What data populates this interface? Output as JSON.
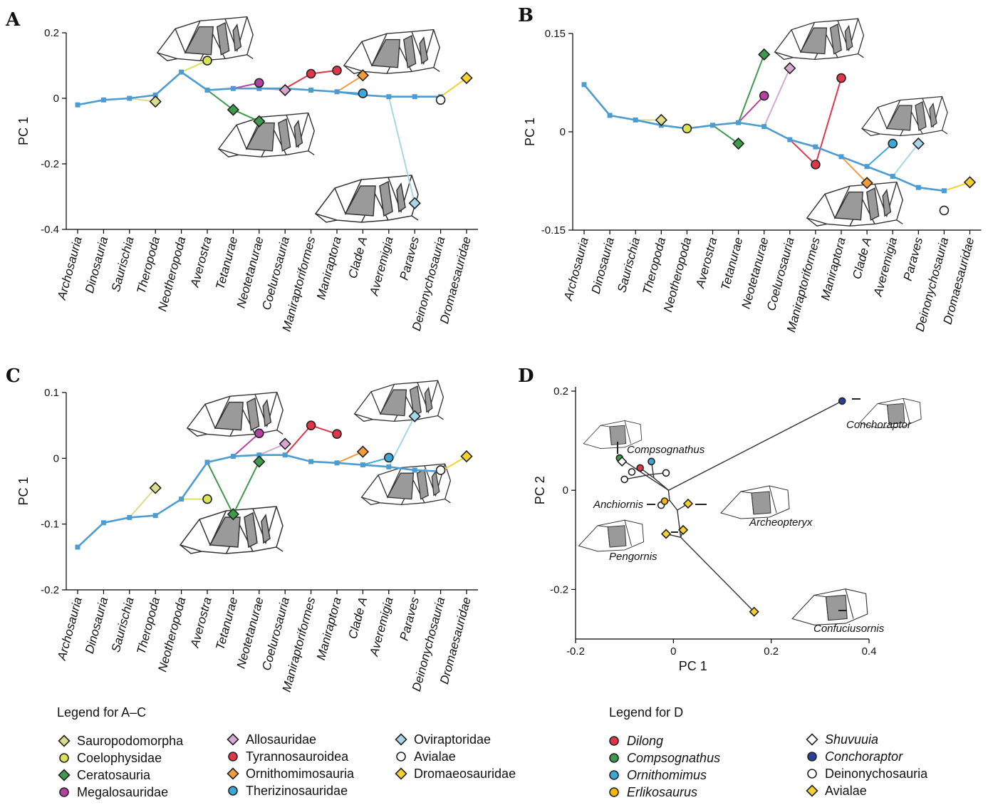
{
  "figure": {
    "panel_letters": [
      "A",
      "B",
      "C",
      "D"
    ]
  },
  "colors": {
    "Main": "#4d9cd1",
    "Sauropodomorpha": "#dcdc8a",
    "Coelophysidae": "#d9e35a",
    "Ceratosauria": "#3f9a4e",
    "Megalosauridae": "#b243a1",
    "Allosauridae": "#d7a7cf",
    "Tyrannosauroidea": "#e0364a",
    "Ornithomimosauria": "#f29b3a",
    "Therizinosauridae": "#3aa8d8",
    "Oviraptoridae": "#a7d6e8",
    "Avialae": "#ffffff",
    "Dromaeosauridae": "#f6d12d",
    "Dilong": "#e0364a",
    "Compsognathus": "#3f9a4e",
    "Ornithomimus": "#3aa8d8",
    "Erlikosaurus": "#f5b800",
    "Shuvuuia": "#ffffff",
    "Conchoraptor": "#2b3f9a",
    "Deinonychosauria": "#ffffff",
    "AvialaeD": "#f6d12d"
  },
  "chart_data": [
    {
      "panel": "A",
      "type": "line",
      "ylabel": "PC 1",
      "ylim": [
        -0.4,
        0.2
      ],
      "yticks": [
        0.2,
        0,
        -0.2,
        -0.4
      ],
      "ytick_labels": [
        "0.2",
        "0",
        "-0.2",
        "-0.4"
      ],
      "categories": [
        "Archosauria",
        "Dinosauria",
        "Saurischia",
        "Theropoda",
        "Neotheropoda",
        "Averostra",
        "Tetanurae",
        "Neotetanurae",
        "Coelurosauria",
        "Maniraptoriformes",
        "Maniraptora",
        "Clade A",
        "Averemigia",
        "Paraves",
        "Deinonychosauria",
        "Dromaesauridae"
      ],
      "main_series": {
        "name": "",
        "x": [
          0,
          1,
          2,
          3,
          4,
          5,
          6,
          7,
          8,
          9,
          10,
          11,
          12,
          13,
          14
        ],
        "values": [
          -0.02,
          -0.005,
          0.0,
          0.01,
          0.08,
          0.025,
          0.03,
          0.03,
          0.03,
          0.025,
          0.02,
          0.01,
          0.005,
          0.005,
          0.005
        ]
      },
      "branches": [
        {
          "group": "Sauropodomorpha",
          "from_x": 2,
          "from_y": 0.0,
          "x": 3,
          "y": -0.01,
          "shape": "diamond"
        },
        {
          "group": "Coelophysidae",
          "from_x": 4,
          "from_y": 0.08,
          "x": 5,
          "y": 0.115,
          "shape": "circle"
        },
        {
          "group": "Ceratosauria",
          "from_x": 5,
          "from_y": 0.025,
          "x": 6,
          "y": -0.035,
          "shape": "diamond"
        },
        {
          "group": "Ceratosauria",
          "from_x": 6,
          "from_y": -0.035,
          "x": 7,
          "y": -0.07,
          "shape": "diamond"
        },
        {
          "group": "Megalosauridae",
          "from_x": 6,
          "from_y": 0.03,
          "x": 7,
          "y": 0.047,
          "shape": "circle"
        },
        {
          "group": "Allosauridae",
          "from_x": 7,
          "from_y": 0.03,
          "x": 8,
          "y": 0.025,
          "shape": "diamond"
        },
        {
          "group": "Tyrannosauroidea",
          "from_x": 8,
          "from_y": 0.03,
          "x": 9,
          "y": 0.075,
          "shape": "circle"
        },
        {
          "group": "Tyrannosauroidea",
          "from_x": 9,
          "from_y": 0.075,
          "x": 10,
          "y": 0.085,
          "shape": "circle"
        },
        {
          "group": "Ornithomimosauria",
          "from_x": 10,
          "from_y": 0.02,
          "x": 11,
          "y": 0.07,
          "shape": "diamond"
        },
        {
          "group": "Therizinosauridae",
          "from_x": 10,
          "from_y": 0.02,
          "x": 11,
          "y": 0.015,
          "shape": "circle"
        },
        {
          "group": "Oviraptoridae",
          "from_x": 12,
          "from_y": 0.005,
          "x": 13,
          "y": -0.32,
          "shape": "diamond"
        },
        {
          "group": "Avialae",
          "from_x": 13,
          "from_y": 0.005,
          "x": 14,
          "y": -0.005,
          "shape": "circle"
        },
        {
          "group": "Dromaeosauridae",
          "from_x": 14,
          "from_y": 0.005,
          "x": 15,
          "y": 0.062,
          "shape": "diamond"
        }
      ]
    },
    {
      "panel": "B",
      "type": "line",
      "ylabel": "PC 1",
      "ylim": [
        -0.15,
        0.15
      ],
      "yticks": [
        0.15,
        0,
        -0.15
      ],
      "ytick_labels": [
        "0.15",
        "0",
        "-0.15"
      ],
      "categories": [
        "Archosauria",
        "Dinosauria",
        "Saurischia",
        "Theropoda",
        "Neotheropoda",
        "Averostra",
        "Tetanurae",
        "Neotetanurae",
        "Coelurosauria",
        "Maniraptoriformes",
        "Maniraptora",
        "Clade A",
        "Averemigia",
        "Paraves",
        "Deinonychosauria",
        "Dromaesauridae"
      ],
      "main_series": {
        "name": "",
        "x": [
          0,
          1,
          2,
          3,
          4,
          5,
          6,
          7,
          8,
          9,
          10,
          11,
          12,
          13,
          14
        ],
        "values": [
          0.072,
          0.025,
          0.018,
          0.01,
          0.005,
          0.01,
          0.014,
          0.008,
          -0.012,
          -0.023,
          -0.038,
          -0.053,
          -0.068,
          -0.085,
          -0.09
        ]
      },
      "branches": [
        {
          "group": "Sauropodomorpha",
          "from_x": 2,
          "from_y": 0.018,
          "x": 3,
          "y": 0.018,
          "shape": "diamond"
        },
        {
          "group": "Coelophysidae",
          "from_x": 3,
          "from_y": 0.01,
          "x": 4,
          "y": 0.005,
          "shape": "circle"
        },
        {
          "group": "Ceratosauria",
          "from_x": 5,
          "from_y": 0.01,
          "x": 6,
          "y": -0.018,
          "shape": "diamond"
        },
        {
          "group": "Ceratosauria",
          "from_x": 6,
          "from_y": 0.014,
          "x": 7,
          "y": 0.118,
          "shape": "diamond"
        },
        {
          "group": "Megalosauridae",
          "from_x": 6,
          "from_y": 0.014,
          "x": 7,
          "y": 0.055,
          "shape": "circle"
        },
        {
          "group": "Allosauridae",
          "from_x": 7,
          "from_y": 0.008,
          "x": 8,
          "y": 0.097,
          "shape": "diamond"
        },
        {
          "group": "Tyrannosauroidea",
          "from_x": 8,
          "from_y": -0.012,
          "x": 9,
          "y": -0.05,
          "shape": "circle"
        },
        {
          "group": "Tyrannosauroidea",
          "from_x": 9,
          "from_y": -0.05,
          "x": 10,
          "y": 0.082,
          "shape": "circle"
        },
        {
          "group": "Ornithomimosauria",
          "from_x": 10,
          "from_y": -0.038,
          "x": 11,
          "y": -0.078,
          "shape": "diamond"
        },
        {
          "group": "Therizinosauridae",
          "from_x": 11,
          "from_y": -0.053,
          "x": 12,
          "y": -0.018,
          "shape": "circle"
        },
        {
          "group": "Oviraptoridae",
          "from_x": 12,
          "from_y": -0.068,
          "x": 13,
          "y": -0.018,
          "shape": "diamond"
        },
        {
          "group": "Avialae",
          "from_x": 13,
          "from_y": -0.085,
          "x": 14,
          "y": -0.12,
          "shape": "circle"
        },
        {
          "group": "Dromaeosauridae",
          "from_x": 14,
          "from_y": -0.09,
          "x": 15,
          "y": -0.077,
          "shape": "diamond"
        }
      ]
    },
    {
      "panel": "C",
      "type": "line",
      "ylabel": "PC 1",
      "ylim": [
        -0.2,
        0.1
      ],
      "yticks": [
        0.1,
        0,
        -0.1,
        -0.2
      ],
      "ytick_labels": [
        "0.1",
        "0",
        "-0.1",
        "-0.2"
      ],
      "categories": [
        "Archosauria",
        "Dinosauria",
        "Saurischia",
        "Theropoda",
        "Neotheropoda",
        "Averostra",
        "Tetanurae",
        "Neotetanurae",
        "Coelurosauria",
        "Maniraptoriformes",
        "Maniraptora",
        "Clade A",
        "Averemigia",
        "Paraves",
        "Deinonychosauria",
        "Dromaesauridae"
      ],
      "main_series": {
        "name": "",
        "x": [
          0,
          1,
          2,
          3,
          4,
          5,
          6,
          7,
          8,
          9,
          10,
          11,
          12,
          13,
          14
        ],
        "values": [
          -0.135,
          -0.098,
          -0.09,
          -0.087,
          -0.062,
          -0.006,
          0.003,
          0.005,
          0.005,
          -0.005,
          -0.007,
          -0.01,
          -0.013,
          -0.018,
          -0.02
        ]
      },
      "branches": [
        {
          "group": "Sauropodomorpha",
          "from_x": 2,
          "from_y": -0.09,
          "x": 3,
          "y": -0.045,
          "shape": "diamond"
        },
        {
          "group": "Coelophysidae",
          "from_x": 4,
          "from_y": -0.062,
          "x": 5,
          "y": -0.062,
          "shape": "circle"
        },
        {
          "group": "Ceratosauria",
          "from_x": 5,
          "from_y": -0.006,
          "x": 6,
          "y": -0.085,
          "shape": "diamond"
        },
        {
          "group": "Ceratosauria",
          "from_x": 6,
          "from_y": -0.085,
          "x": 7,
          "y": -0.005,
          "shape": "diamond"
        },
        {
          "group": "Megalosauridae",
          "from_x": 6,
          "from_y": 0.003,
          "x": 7,
          "y": 0.038,
          "shape": "circle"
        },
        {
          "group": "Allosauridae",
          "from_x": 7,
          "from_y": 0.005,
          "x": 8,
          "y": 0.022,
          "shape": "diamond"
        },
        {
          "group": "Tyrannosauroidea",
          "from_x": 8,
          "from_y": 0.005,
          "x": 9,
          "y": 0.05,
          "shape": "circle"
        },
        {
          "group": "Tyrannosauroidea",
          "from_x": 9,
          "from_y": 0.05,
          "x": 10,
          "y": 0.037,
          "shape": "circle"
        },
        {
          "group": "Ornithomimosauria",
          "from_x": 10,
          "from_y": -0.007,
          "x": 11,
          "y": 0.01,
          "shape": "diamond"
        },
        {
          "group": "Therizinosauridae",
          "from_x": 11,
          "from_y": -0.01,
          "x": 12,
          "y": 0.001,
          "shape": "circle"
        },
        {
          "group": "Oviraptoridae",
          "from_x": 12,
          "from_y": -0.013,
          "x": 13,
          "y": 0.064,
          "shape": "diamond"
        },
        {
          "group": "Avialae",
          "from_x": 13,
          "from_y": -0.018,
          "x": 14,
          "y": -0.018,
          "shape": "circle"
        },
        {
          "group": "Dromaeosauridae",
          "from_x": 14,
          "from_y": -0.02,
          "x": 15,
          "y": 0.003,
          "shape": "diamond"
        }
      ]
    },
    {
      "panel": "D",
      "type": "scatter",
      "xlabel": "PC 1",
      "ylabel": "PC 2",
      "xlim": [
        -0.2,
        0.4
      ],
      "ylim": [
        -0.3,
        0.2
      ],
      "xticks": [
        -0.2,
        0,
        0.2,
        0.4
      ],
      "xtick_labels": [
        "-0.2",
        "0",
        "0.2",
        "0.4"
      ],
      "yticks": [
        0.2,
        0,
        -0.2
      ],
      "ytick_labels": [
        "0.2",
        "0",
        "-0.2"
      ],
      "points": [
        {
          "group": "Conchoraptor",
          "x": 0.345,
          "y": 0.18,
          "shape": "circle",
          "label": "Conchoraptor"
        },
        {
          "group": "Compsognathus",
          "x": -0.11,
          "y": 0.065,
          "shape": "circle",
          "label": "Compsognathus"
        },
        {
          "group": "Dilong",
          "x": -0.068,
          "y": 0.045,
          "shape": "circle",
          "label": ""
        },
        {
          "group": "Ornithomimus",
          "x": -0.045,
          "y": 0.058,
          "shape": "circle",
          "label": ""
        },
        {
          "group": "Deinonychosauria",
          "x": -0.085,
          "y": 0.037,
          "shape": "circle",
          "label": ""
        },
        {
          "group": "Deinonychosauria",
          "x": -0.015,
          "y": 0.035,
          "shape": "circle",
          "label": ""
        },
        {
          "group": "Deinonychosauria",
          "x": -0.1,
          "y": 0.022,
          "shape": "circle",
          "label": ""
        },
        {
          "group": "Shuvuuia",
          "x": -0.105,
          "y": 0.058,
          "shape": "diamond",
          "label": ""
        },
        {
          "group": "Deinonychosauria",
          "x": -0.025,
          "y": -0.03,
          "shape": "circle",
          "label": "Anchiornis"
        },
        {
          "group": "Erlikosaurus",
          "x": -0.018,
          "y": -0.022,
          "shape": "circle",
          "label": ""
        },
        {
          "group": "AvialaeD",
          "x": 0.03,
          "y": -0.027,
          "shape": "diamond",
          "label": "Archeopteryx"
        },
        {
          "group": "AvialaeD",
          "x": -0.015,
          "y": -0.088,
          "shape": "diamond",
          "label": "Pengornis"
        },
        {
          "group": "AvialaeD",
          "x": 0.02,
          "y": -0.08,
          "shape": "diamond",
          "label": ""
        },
        {
          "group": "AvialaeD",
          "x": 0.165,
          "y": -0.245,
          "shape": "diamond",
          "label": "Confuciusornis"
        }
      ],
      "tree_edges": [
        [
          [
            -0.11,
            0.065
          ],
          [
            -0.01,
            0.0
          ]
        ],
        [
          [
            -0.068,
            0.045
          ],
          [
            -0.04,
            0.025
          ]
        ],
        [
          [
            -0.045,
            0.058
          ],
          [
            -0.04,
            0.025
          ]
        ],
        [
          [
            -0.015,
            0.035
          ],
          [
            -0.045,
            0.032
          ]
        ],
        [
          [
            -0.1,
            0.022
          ],
          [
            -0.045,
            0.032
          ]
        ],
        [
          [
            -0.04,
            0.025
          ],
          [
            -0.01,
            0.0
          ]
        ],
        [
          [
            -0.01,
            0.0
          ],
          [
            0.345,
            0.18
          ]
        ],
        [
          [
            -0.01,
            0.0
          ],
          [
            -0.008,
            -0.02
          ]
        ],
        [
          [
            -0.008,
            -0.02
          ],
          [
            -0.025,
            -0.03
          ]
        ],
        [
          [
            -0.008,
            -0.02
          ],
          [
            0.008,
            -0.04
          ]
        ],
        [
          [
            0.008,
            -0.04
          ],
          [
            0.03,
            -0.027
          ]
        ],
        [
          [
            0.008,
            -0.04
          ],
          [
            0.015,
            -0.095
          ]
        ],
        [
          [
            0.015,
            -0.095
          ],
          [
            -0.015,
            -0.088
          ]
        ],
        [
          [
            0.015,
            -0.095
          ],
          [
            0.02,
            -0.08
          ]
        ],
        [
          [
            0.015,
            -0.095
          ],
          [
            0.165,
            -0.245
          ]
        ]
      ]
    }
  ],
  "legend_ac": {
    "title": "Legend for A–C",
    "items": [
      {
        "label": "Sauropodomorpha",
        "group": "Sauropodomorpha",
        "shape": "diamond"
      },
      {
        "label": "Coelophysidae",
        "group": "Coelophysidae",
        "shape": "circle"
      },
      {
        "label": "Ceratosauria",
        "group": "Ceratosauria",
        "shape": "diamond"
      },
      {
        "label": "Megalosauridae",
        "group": "Megalosauridae",
        "shape": "circle"
      },
      {
        "label": "Allosauridae",
        "group": "Allosauridae",
        "shape": "diamond"
      },
      {
        "label": "Tyrannosauroidea",
        "group": "Tyrannosauroidea",
        "shape": "circle"
      },
      {
        "label": "Ornithomimosauria",
        "group": "Ornithomimosauria",
        "shape": "diamond"
      },
      {
        "label": "Therizinosauridae",
        "group": "Therizinosauridae",
        "shape": "circle"
      },
      {
        "label": "Oviraptoridae",
        "group": "Oviraptoridae",
        "shape": "diamond"
      },
      {
        "label": "Avialae",
        "group": "Avialae",
        "shape": "circle"
      },
      {
        "label": "Dromaeosauridae",
        "group": "Dromaeosauridae",
        "shape": "diamond"
      }
    ]
  },
  "legend_d": {
    "title": "Legend for D",
    "items": [
      {
        "label": "Dilong",
        "group": "Dilong",
        "shape": "circle",
        "italic": true
      },
      {
        "label": "Compsognathus",
        "group": "Compsognathus",
        "shape": "circle",
        "italic": true
      },
      {
        "label": "Ornithomimus",
        "group": "Ornithomimus",
        "shape": "circle",
        "italic": true
      },
      {
        "label": "Erlikosaurus",
        "group": "Erlikosaurus",
        "shape": "circle",
        "italic": true
      },
      {
        "label": "Shuvuuia",
        "group": "Shuvuuia",
        "shape": "diamond",
        "italic": true
      },
      {
        "label": "Conchoraptor",
        "group": "Conchoraptor",
        "shape": "circle",
        "italic": true
      },
      {
        "label": "Deinonychosauria",
        "group": "Deinonychosauria",
        "shape": "circle",
        "italic": false
      },
      {
        "label": "Avialae",
        "group": "AvialaeD",
        "shape": "diamond",
        "italic": false
      }
    ]
  }
}
